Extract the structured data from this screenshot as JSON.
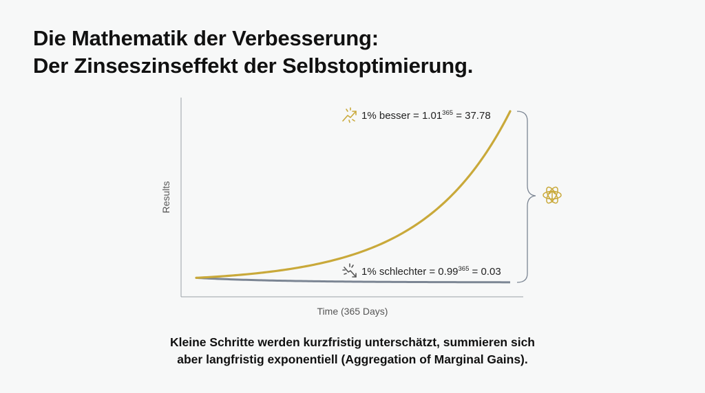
{
  "title": {
    "line1": "Die Mathematik der Verbesserung:",
    "line2": "Der Zinseszinseffekt der Selbstoptimierung."
  },
  "caption": {
    "line1": "Kleine Schritte werden kurzfristig unterschätzt, summieren sich",
    "line2": "aber langfristig exponentiell (Aggregation of Marginal Gains)."
  },
  "colors": {
    "better": "#c9a93a",
    "worse": "#7b8593",
    "axis": "#9aa0a6",
    "icon_muted": "#555555"
  },
  "icons": {
    "better": "trending-up-sparkle-icon",
    "worse": "trending-down-sparkle-icon",
    "brace": "curly-brace-icon",
    "growth": "atom-arrow-up-icon"
  },
  "chart_data": {
    "type": "line",
    "xlabel": "Time (365 Days)",
    "ylabel": "Results",
    "xlim": [
      0,
      365
    ],
    "ylim": [
      0,
      40
    ],
    "grid": false,
    "series": [
      {
        "key": "better",
        "label_prefix": "1% besser = 1.01",
        "exponent": "365",
        "label_suffix": " = 37.78",
        "base": 1.01,
        "x": [
          0,
          50,
          100,
          150,
          200,
          250,
          300,
          365
        ],
        "values": [
          1.0,
          1.64,
          2.7,
          4.45,
          7.32,
          12.03,
          19.79,
          37.78
        ]
      },
      {
        "key": "worse",
        "label_prefix": "1% schlechter = 0.99",
        "exponent": "365",
        "label_suffix": " = 0.03",
        "base": 0.99,
        "x": [
          0,
          50,
          100,
          150,
          200,
          250,
          300,
          365
        ],
        "values": [
          1.0,
          0.61,
          0.37,
          0.22,
          0.13,
          0.08,
          0.05,
          0.03
        ]
      }
    ]
  }
}
